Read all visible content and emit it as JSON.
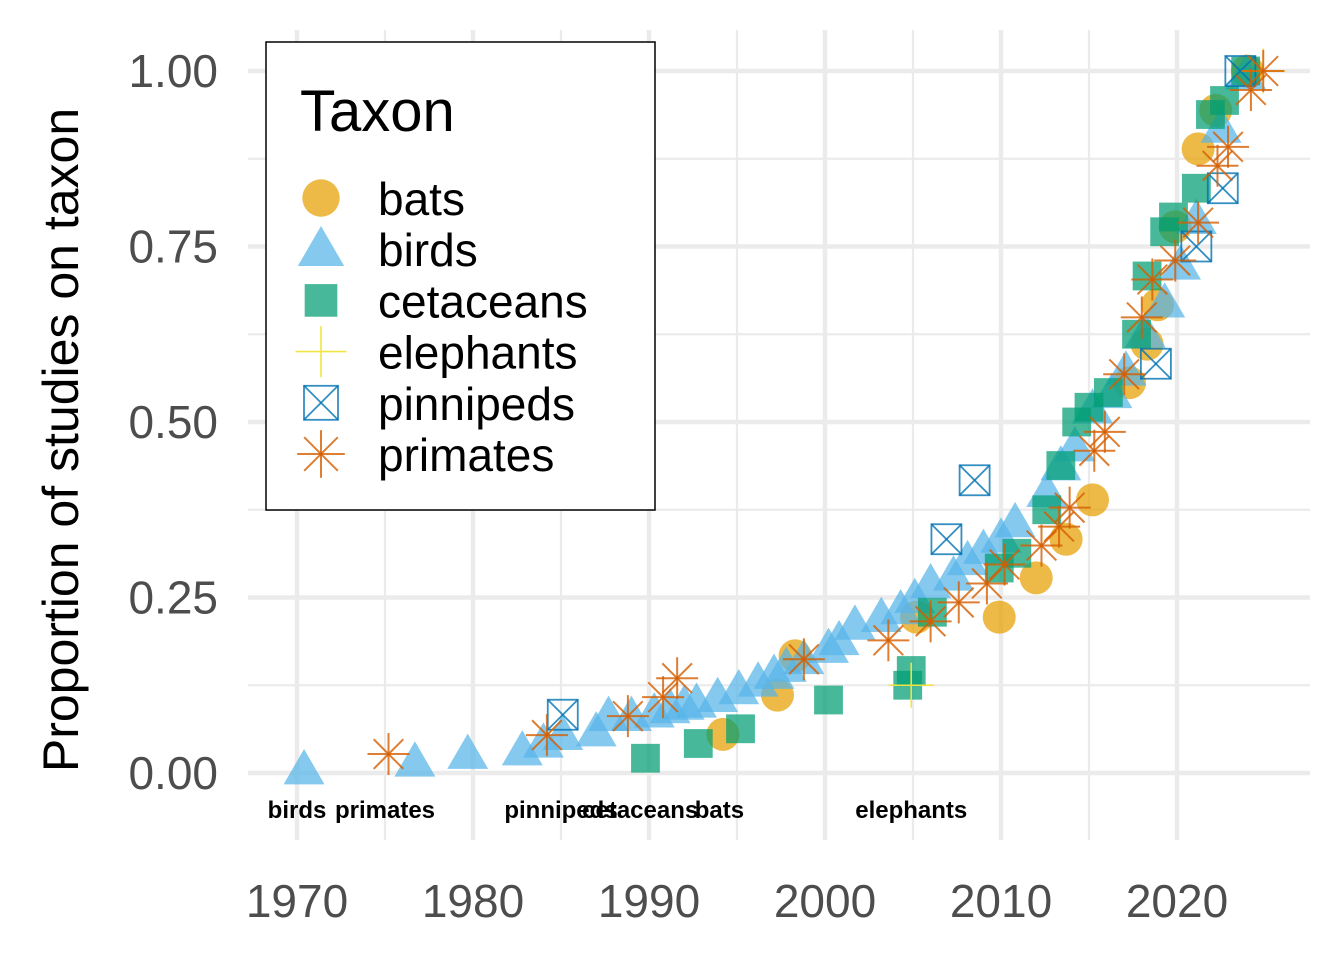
{
  "chart_data": {
    "type": "scatter",
    "ylabel": "Proportion of studies on taxon",
    "xlabel": "",
    "xlim": [
      1968,
      2027
    ],
    "ylim": [
      -0.1,
      1.05
    ],
    "x_ticks": [
      "1970",
      "1980",
      "1990",
      "2000",
      "2010",
      "2020"
    ],
    "x_tick_values": [
      1970,
      1980,
      1990,
      2000,
      2010,
      2020
    ],
    "y_ticks": [
      "0.00",
      "0.25",
      "0.50",
      "0.75",
      "1.00"
    ],
    "y_tick_values": [
      0,
      0.25,
      0.5,
      0.75,
      1.0
    ],
    "grid": true,
    "legend": {
      "title": "Taxon",
      "placement": "top-left"
    },
    "series": [
      {
        "name": "bats",
        "color": "#E69F00",
        "shape": "circle",
        "points": [
          [
            1994.2,
            0.055
          ],
          [
            1997.3,
            0.111
          ],
          [
            1998.3,
            0.167
          ],
          [
            2005.2,
            0.222
          ],
          [
            2009.9,
            0.222
          ],
          [
            2012.0,
            0.278
          ],
          [
            2013.7,
            0.333
          ],
          [
            2015.2,
            0.389
          ],
          [
            2017.3,
            0.556
          ],
          [
            2018.3,
            0.611
          ],
          [
            2018.9,
            0.667
          ],
          [
            2019.9,
            0.778
          ],
          [
            2021.2,
            0.889
          ],
          [
            2022.2,
            0.944
          ],
          [
            2024.0,
            1.0
          ]
        ]
      },
      {
        "name": "birds",
        "color": "#56B4E9",
        "shape": "triangle",
        "points": [
          [
            1970.4,
            0.005
          ],
          [
            1976.7,
            0.016
          ],
          [
            1979.7,
            0.027
          ],
          [
            1982.8,
            0.032
          ],
          [
            1984.0,
            0.043
          ],
          [
            1985.1,
            0.054
          ],
          [
            1987.0,
            0.059
          ],
          [
            1987.7,
            0.081
          ],
          [
            1989.0,
            0.081
          ],
          [
            1990.3,
            0.086
          ],
          [
            1991.2,
            0.092
          ],
          [
            1992.0,
            0.097
          ],
          [
            1992.7,
            0.1
          ],
          [
            1993.9,
            0.108
          ],
          [
            1995.1,
            0.119
          ],
          [
            1996.2,
            0.13
          ],
          [
            1997.1,
            0.141
          ],
          [
            1997.8,
            0.151
          ],
          [
            1998.8,
            0.162
          ],
          [
            2000.2,
            0.178
          ],
          [
            2000.8,
            0.189
          ],
          [
            2001.7,
            0.211
          ],
          [
            2003.2,
            0.222
          ],
          [
            2004.3,
            0.233
          ],
          [
            2005.1,
            0.249
          ],
          [
            2006.0,
            0.27
          ],
          [
            2007.3,
            0.281
          ],
          [
            2008.1,
            0.303
          ],
          [
            2009.0,
            0.319
          ],
          [
            2010.0,
            0.335
          ],
          [
            2010.8,
            0.357
          ],
          [
            2012.6,
            0.4
          ],
          [
            2013.4,
            0.438
          ],
          [
            2014.2,
            0.465
          ],
          [
            2015.2,
            0.519
          ],
          [
            2016.3,
            0.541
          ],
          [
            2017.1,
            0.573
          ],
          [
            2018.2,
            0.627
          ],
          [
            2019.3,
            0.67
          ],
          [
            2020.2,
            0.724
          ],
          [
            2021.1,
            0.789
          ],
          [
            2022.5,
            0.919
          ],
          [
            2023.9,
            0.995
          ]
        ]
      },
      {
        "name": "cetaceans",
        "color": "#009E73",
        "shape": "square",
        "points": [
          [
            1989.8,
            0.021
          ],
          [
            1992.8,
            0.042
          ],
          [
            1995.2,
            0.063
          ],
          [
            2000.2,
            0.104
          ],
          [
            2004.7,
            0.125
          ],
          [
            2004.9,
            0.146
          ],
          [
            2006.1,
            0.229
          ],
          [
            2009.9,
            0.292
          ],
          [
            2010.9,
            0.313
          ],
          [
            2012.6,
            0.375
          ],
          [
            2013.4,
            0.438
          ],
          [
            2014.3,
            0.5
          ],
          [
            2015.0,
            0.521
          ],
          [
            2016.1,
            0.542
          ],
          [
            2017.7,
            0.625
          ],
          [
            2018.3,
            0.708
          ],
          [
            2019.3,
            0.771
          ],
          [
            2019.8,
            0.792
          ],
          [
            2021.1,
            0.833
          ],
          [
            2021.9,
            0.938
          ],
          [
            2022.7,
            0.958
          ],
          [
            2023.9,
            1.0
          ]
        ]
      },
      {
        "name": "elephants",
        "color": "#F0E442",
        "shape": "plus",
        "points": [
          [
            2004.9,
            0.125
          ],
          [
            2024.9,
            1.0
          ]
        ]
      },
      {
        "name": "pinnipeds",
        "color": "#0072B2",
        "shape": "square-cross",
        "points": [
          [
            1985.1,
            0.083
          ],
          [
            2006.9,
            0.333
          ],
          [
            2008.5,
            0.417
          ],
          [
            2018.8,
            0.583
          ],
          [
            2021.1,
            0.75
          ],
          [
            2022.6,
            0.833
          ],
          [
            2023.6,
            1.0
          ]
        ]
      },
      {
        "name": "primates",
        "color": "#D55E00",
        "shape": "star",
        "points": [
          [
            1975.2,
            0.027
          ],
          [
            1984.2,
            0.054
          ],
          [
            1988.8,
            0.081
          ],
          [
            1990.8,
            0.108
          ],
          [
            1991.6,
            0.135
          ],
          [
            1998.8,
            0.162
          ],
          [
            2003.6,
            0.189
          ],
          [
            2006.0,
            0.216
          ],
          [
            2007.6,
            0.243
          ],
          [
            2009.2,
            0.27
          ],
          [
            2010.2,
            0.297
          ],
          [
            2012.3,
            0.324
          ],
          [
            2013.3,
            0.351
          ],
          [
            2013.9,
            0.378
          ],
          [
            2015.3,
            0.459
          ],
          [
            2015.9,
            0.486
          ],
          [
            2017.0,
            0.568
          ],
          [
            2018.0,
            0.649
          ],
          [
            2018.6,
            0.703
          ],
          [
            2019.9,
            0.73
          ],
          [
            2021.2,
            0.784
          ],
          [
            2022.3,
            0.865
          ],
          [
            2022.9,
            0.892
          ],
          [
            2024.2,
            0.973
          ],
          [
            2024.9,
            1.0
          ]
        ]
      }
    ],
    "first_year_labels": [
      {
        "text": "birds",
        "x": 1970.0
      },
      {
        "text": "primates",
        "x": 1975.0
      },
      {
        "text": "pinnipeds",
        "x": 1985.0
      },
      {
        "text": "cetaceans",
        "x": 1989.5
      },
      {
        "text": "bats",
        "x": 1994.0
      },
      {
        "text": "elephants",
        "x": 2004.9
      }
    ]
  }
}
